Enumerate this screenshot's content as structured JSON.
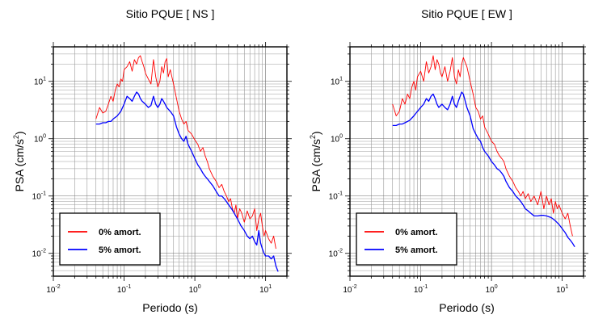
{
  "chart_data": [
    {
      "type": "line",
      "title": "Sitio PQUE [ NS ]",
      "xlabel": "Periodo (s)",
      "ylabel": "PSA (cm/s",
      "ylabel_sup": "2",
      "ylabel_close": ")",
      "x_scale": "log",
      "y_scale": "log",
      "xlim": [
        0.01,
        20
      ],
      "ylim": [
        0.004,
        40
      ],
      "grid": true,
      "legend_placement": "bottom-left",
      "x_ticks": [
        {
          "base": "10",
          "exp": "-2"
        },
        {
          "base": "10",
          "exp": "-1"
        },
        {
          "base": "10",
          "exp": "0"
        },
        {
          "base": "10",
          "exp": "1"
        }
      ],
      "y_ticks": [
        {
          "base": "10",
          "exp": "-2"
        },
        {
          "base": "10",
          "exp": "-1"
        },
        {
          "base": "10",
          "exp": "0"
        },
        {
          "base": "10",
          "exp": "1"
        }
      ],
      "series": [
        {
          "name": "0% amort.",
          "color": "#ff0000",
          "x": [
            0.04,
            0.045,
            0.05,
            0.055,
            0.06,
            0.065,
            0.07,
            0.075,
            0.08,
            0.085,
            0.09,
            0.095,
            0.1,
            0.11,
            0.12,
            0.13,
            0.14,
            0.15,
            0.16,
            0.17,
            0.18,
            0.19,
            0.2,
            0.22,
            0.24,
            0.26,
            0.28,
            0.3,
            0.32,
            0.34,
            0.36,
            0.38,
            0.4,
            0.42,
            0.45,
            0.5,
            0.55,
            0.6,
            0.65,
            0.7,
            0.75,
            0.8,
            0.9,
            1.0,
            1.1,
            1.2,
            1.3,
            1.4,
            1.5,
            1.6,
            1.8,
            2.0,
            2.2,
            2.4,
            2.6,
            2.8,
            3.0,
            3.2,
            3.4,
            3.6,
            3.8,
            4.0,
            4.3,
            4.6,
            5.0,
            5.5,
            6.0,
            6.5,
            7.0,
            7.5,
            8.0,
            8.5,
            9.0,
            9.5,
            10,
            11,
            12,
            13,
            14
          ],
          "y": [
            2.2,
            3.5,
            2.8,
            3.0,
            4.0,
            5.5,
            4.5,
            7.0,
            9.0,
            8.0,
            11,
            10,
            16,
            18,
            22,
            15,
            24,
            20,
            26,
            28,
            22,
            18,
            14,
            11,
            9,
            24,
            12,
            8,
            10,
            18,
            14,
            22,
            25,
            12,
            16,
            9,
            5,
            3,
            2.2,
            1.8,
            2.0,
            1.4,
            1.2,
            0.95,
            0.8,
            0.6,
            0.7,
            0.5,
            0.4,
            0.3,
            0.22,
            0.18,
            0.14,
            0.16,
            0.12,
            0.1,
            0.08,
            0.09,
            0.06,
            0.05,
            0.07,
            0.04,
            0.06,
            0.05,
            0.035,
            0.055,
            0.04,
            0.045,
            0.06,
            0.025,
            0.04,
            0.05,
            0.03,
            0.02,
            0.025,
            0.018,
            0.015,
            0.02,
            0.012
          ]
        },
        {
          "name": "5% amort.",
          "color": "#0000ff",
          "x": [
            0.04,
            0.045,
            0.05,
            0.055,
            0.06,
            0.065,
            0.07,
            0.08,
            0.09,
            0.1,
            0.11,
            0.12,
            0.13,
            0.14,
            0.15,
            0.16,
            0.17,
            0.18,
            0.2,
            0.22,
            0.24,
            0.26,
            0.28,
            0.3,
            0.32,
            0.34,
            0.36,
            0.38,
            0.4,
            0.45,
            0.5,
            0.55,
            0.6,
            0.65,
            0.7,
            0.75,
            0.8,
            0.9,
            1.0,
            1.1,
            1.2,
            1.3,
            1.4,
            1.5,
            1.6,
            1.8,
            2.0,
            2.2,
            2.4,
            2.6,
            2.8,
            3.0,
            3.3,
            3.6,
            4.0,
            4.5,
            5.0,
            5.5,
            6.0,
            6.5,
            7.0,
            7.5,
            8.0,
            8.5,
            9.0,
            9.5,
            10,
            11,
            12,
            13,
            14,
            15
          ],
          "y": [
            1.8,
            1.8,
            1.9,
            1.9,
            2.0,
            2.0,
            2.2,
            2.5,
            3.0,
            4.0,
            5.5,
            5.0,
            4.5,
            5.5,
            6.5,
            6.0,
            5.0,
            4.5,
            4.0,
            3.5,
            3.8,
            5.5,
            4.0,
            3.5,
            4.0,
            5.0,
            4.5,
            4.0,
            3.5,
            3.0,
            2.5,
            1.6,
            1.2,
            1.0,
            0.9,
            1.1,
            0.8,
            0.6,
            0.45,
            0.35,
            0.3,
            0.25,
            0.22,
            0.2,
            0.18,
            0.15,
            0.12,
            0.1,
            0.1,
            0.09,
            0.08,
            0.07,
            0.06,
            0.05,
            0.04,
            0.03,
            0.025,
            0.02,
            0.018,
            0.02,
            0.016,
            0.014,
            0.025,
            0.015,
            0.012,
            0.01,
            0.009,
            0.009,
            0.008,
            0.009,
            0.006,
            0.0048
          ]
        }
      ]
    },
    {
      "type": "line",
      "title": "Sitio PQUE [ EW ]",
      "xlabel": "Periodo (s)",
      "ylabel": "PSA (cm/s",
      "ylabel_sup": "2",
      "ylabel_close": ")",
      "x_scale": "log",
      "y_scale": "log",
      "xlim": [
        0.01,
        20
      ],
      "ylim": [
        0.004,
        40
      ],
      "grid": true,
      "legend_placement": "bottom-left",
      "x_ticks": [
        {
          "base": "10",
          "exp": "-2"
        },
        {
          "base": "10",
          "exp": "-1"
        },
        {
          "base": "10",
          "exp": "0"
        },
        {
          "base": "10",
          "exp": "1"
        }
      ],
      "y_ticks": [
        {
          "base": "10",
          "exp": "-2"
        },
        {
          "base": "10",
          "exp": "-1"
        },
        {
          "base": "10",
          "exp": "0"
        },
        {
          "base": "10",
          "exp": "1"
        }
      ],
      "series": [
        {
          "name": "0% amort.",
          "color": "#ff0000",
          "x": [
            0.04,
            0.045,
            0.05,
            0.055,
            0.06,
            0.065,
            0.07,
            0.075,
            0.08,
            0.085,
            0.09,
            0.1,
            0.11,
            0.12,
            0.13,
            0.14,
            0.15,
            0.16,
            0.17,
            0.18,
            0.19,
            0.2,
            0.22,
            0.24,
            0.26,
            0.28,
            0.3,
            0.32,
            0.34,
            0.36,
            0.38,
            0.4,
            0.45,
            0.5,
            0.55,
            0.6,
            0.65,
            0.7,
            0.75,
            0.8,
            0.9,
            1.0,
            1.1,
            1.2,
            1.3,
            1.4,
            1.5,
            1.6,
            1.8,
            2.0,
            2.2,
            2.4,
            2.6,
            2.8,
            3.0,
            3.3,
            3.6,
            4.0,
            4.5,
            5.0,
            5.5,
            6.0,
            6.5,
            7.0,
            7.5,
            8.0,
            8.5,
            9.0,
            10,
            11,
            12,
            13,
            14
          ],
          "y": [
            4.0,
            2.5,
            3.0,
            5.0,
            4.0,
            6.0,
            5.0,
            8.0,
            10,
            7.0,
            12,
            15,
            10,
            22,
            14,
            18,
            28,
            16,
            24,
            20,
            14,
            12,
            18,
            10,
            15,
            26,
            12,
            9,
            16,
            12,
            20,
            26,
            18,
            10,
            6,
            3.5,
            3.0,
            2.2,
            2.5,
            1.6,
            1.2,
            0.9,
            0.8,
            0.6,
            0.5,
            0.45,
            0.4,
            0.3,
            0.22,
            0.18,
            0.14,
            0.12,
            0.1,
            0.12,
            0.09,
            0.11,
            0.08,
            0.1,
            0.07,
            0.12,
            0.06,
            0.1,
            0.07,
            0.09,
            0.05,
            0.08,
            0.06,
            0.07,
            0.05,
            0.04,
            0.05,
            0.03,
            0.02
          ]
        },
        {
          "name": "5% amort.",
          "color": "#0000ff",
          "x": [
            0.04,
            0.045,
            0.05,
            0.055,
            0.06,
            0.065,
            0.07,
            0.08,
            0.09,
            0.1,
            0.11,
            0.12,
            0.13,
            0.14,
            0.15,
            0.16,
            0.17,
            0.18,
            0.2,
            0.22,
            0.24,
            0.26,
            0.28,
            0.3,
            0.32,
            0.34,
            0.36,
            0.38,
            0.4,
            0.45,
            0.5,
            0.55,
            0.6,
            0.65,
            0.7,
            0.75,
            0.8,
            0.9,
            1.0,
            1.1,
            1.2,
            1.3,
            1.4,
            1.5,
            1.6,
            1.8,
            2.0,
            2.2,
            2.4,
            2.6,
            2.8,
            3.0,
            3.3,
            3.6,
            4.0,
            4.5,
            5.0,
            5.5,
            6.0,
            7.0,
            8.0,
            9.0,
            10,
            11,
            12,
            13,
            14,
            15
          ],
          "y": [
            1.7,
            1.7,
            1.8,
            1.8,
            1.9,
            2.0,
            2.1,
            2.5,
            3.0,
            3.5,
            4.0,
            5.0,
            4.5,
            5.5,
            6.0,
            5.0,
            4.0,
            3.5,
            4.0,
            3.5,
            3.2,
            4.0,
            5.5,
            4.0,
            3.5,
            4.5,
            5.5,
            6.5,
            6.0,
            3.5,
            2.5,
            1.5,
            1.2,
            1.0,
            0.9,
            0.7,
            0.6,
            0.5,
            0.4,
            0.35,
            0.3,
            0.28,
            0.25,
            0.22,
            0.18,
            0.14,
            0.12,
            0.1,
            0.09,
            0.08,
            0.07,
            0.06,
            0.055,
            0.05,
            0.045,
            0.045,
            0.046,
            0.046,
            0.045,
            0.042,
            0.037,
            0.032,
            0.027,
            0.023,
            0.019,
            0.017,
            0.015,
            0.013
          ]
        }
      ]
    }
  ]
}
